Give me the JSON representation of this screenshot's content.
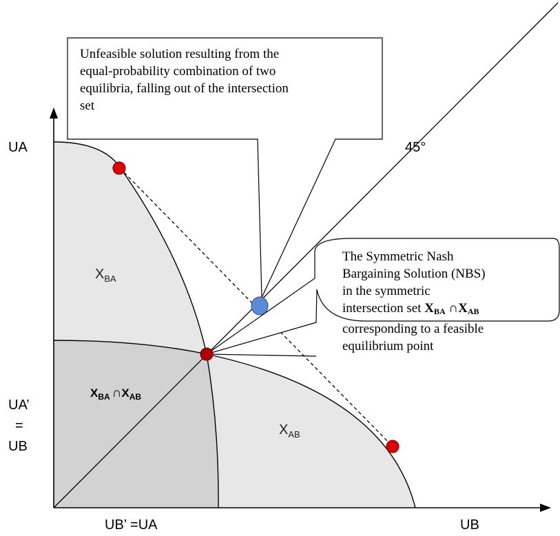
{
  "axes": {
    "y_label": "UA",
    "x_label": "UB",
    "y_mid_label_line1": "UA’",
    "y_mid_label_line2": "=",
    "y_mid_label_line3": "UB",
    "x_mid_label": "UB’ =UA",
    "angle_label": "45°"
  },
  "regions": {
    "x_ba": {
      "base": "X",
      "sub": "BA"
    },
    "x_ab": {
      "base": "X",
      "sub": "AB"
    },
    "intersection": {
      "base1": "X",
      "sub1": "BA",
      "op": "∩",
      "base2": "X",
      "sub2": "AB"
    }
  },
  "callouts": {
    "unfeasible": {
      "lines": [
        "Unfeasible solution resulting from the",
        "equal-probability combination of two",
        "equilibria, falling out of the intersection",
        "set"
      ]
    },
    "nbs": {
      "lines": [
        "The Symmetric Nash",
        "Bargaining Solution (NBS)",
        "in the symmetric"
      ],
      "line4_prefix": "intersection set ",
      "sym1_base": "X",
      "sym1_sub": "BA",
      "sym_op": " ∩",
      "sym2_base": "X",
      "sym2_sub": "AB",
      "lines_after": [
        "corresponding to a feasible",
        "equilibrium point"
      ]
    }
  },
  "colors": {
    "region_light": "#e7e7e7",
    "region_dark": "#d2d2d2",
    "point_red": "#e00000",
    "point_dark_red": "#b00000",
    "point_blue": "#5b8bd8"
  }
}
